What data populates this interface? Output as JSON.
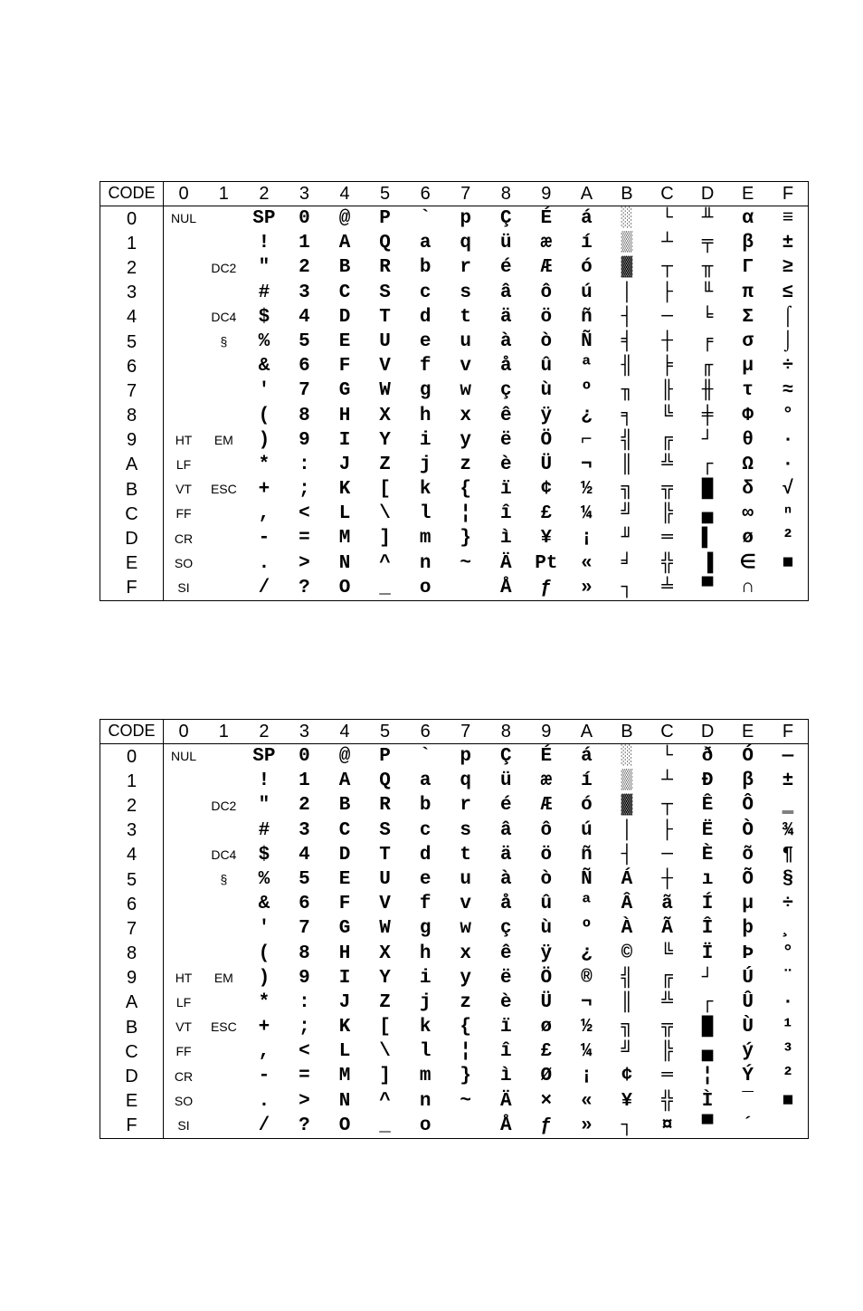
{
  "tables": [
    {
      "header": [
        "CODE",
        "0",
        "1",
        "2",
        "3",
        "4",
        "5",
        "6",
        "7",
        "8",
        "9",
        "A",
        "B",
        "C",
        "D",
        "E",
        "F"
      ],
      "rows": [
        [
          "0",
          "NUL",
          "",
          "SP",
          "0",
          "@",
          "P",
          "`",
          "p",
          "Ç",
          "É",
          "á",
          "░",
          "└",
          "╨",
          "α",
          "≡"
        ],
        [
          "1",
          "",
          "",
          "!",
          "1",
          "A",
          "Q",
          "a",
          "q",
          "ü",
          "æ",
          "í",
          "▒",
          "┴",
          "╤",
          "β",
          "±"
        ],
        [
          "2",
          "",
          "DC2",
          "\"",
          "2",
          "B",
          "R",
          "b",
          "r",
          "é",
          "Æ",
          "ó",
          "▓",
          "┬",
          "╥",
          "Γ",
          "≥"
        ],
        [
          "3",
          "",
          "",
          "#",
          "3",
          "C",
          "S",
          "c",
          "s",
          "â",
          "ô",
          "ú",
          "│",
          "├",
          "╙",
          "π",
          "≤"
        ],
        [
          "4",
          "",
          "DC4",
          "$",
          "4",
          "D",
          "T",
          "d",
          "t",
          "ä",
          "ö",
          "ñ",
          "┤",
          "─",
          "╘",
          "Σ",
          "⌠"
        ],
        [
          "5",
          "",
          "§",
          "%",
          "5",
          "E",
          "U",
          "e",
          "u",
          "à",
          "ò",
          "Ñ",
          "╡",
          "┼",
          "╒",
          "σ",
          "⌡"
        ],
        [
          "6",
          "",
          "",
          "&",
          "6",
          "F",
          "V",
          "f",
          "v",
          "å",
          "û",
          "ª",
          "╢",
          "╞",
          "╓",
          "µ",
          "÷"
        ],
        [
          "7",
          "",
          "",
          "'",
          "7",
          "G",
          "W",
          "g",
          "w",
          "ç",
          "ù",
          "º",
          "╖",
          "╟",
          "╫",
          "τ",
          "≈"
        ],
        [
          "8",
          "",
          "",
          "(",
          "8",
          "H",
          "X",
          "h",
          "x",
          "ê",
          "ÿ",
          "¿",
          "╕",
          "╚",
          "╪",
          "Φ",
          "°"
        ],
        [
          "9",
          "HT",
          "EM",
          ")",
          "9",
          "I",
          "Y",
          "i",
          "y",
          "ë",
          "Ö",
          "⌐",
          "╣",
          "╔",
          "┘",
          "θ",
          "∙"
        ],
        [
          "A",
          "LF",
          "",
          "*",
          ":",
          "J",
          "Z",
          "j",
          "z",
          "è",
          "Ü",
          "¬",
          "║",
          "╩",
          "┌",
          "Ω",
          "·"
        ],
        [
          "B",
          "VT",
          "ESC",
          "+",
          ";",
          "K",
          "[",
          "k",
          "{",
          "ï",
          "¢",
          "½",
          "╗",
          "╦",
          "█",
          "δ",
          "√"
        ],
        [
          "C",
          "FF",
          "",
          ",",
          "<",
          "L",
          "\\",
          "l",
          "¦",
          "î",
          "£",
          "¼",
          "╝",
          "╠",
          "▄",
          "∞",
          "ⁿ"
        ],
        [
          "D",
          "CR",
          "",
          "-",
          "=",
          "M",
          "]",
          "m",
          "}",
          "ì",
          "¥",
          "¡",
          "╜",
          "═",
          "▌",
          "ø",
          "²"
        ],
        [
          "E",
          "SO",
          "",
          ".",
          ">",
          "N",
          "^",
          "n",
          "~",
          "Ä",
          "Pt",
          "«",
          "╛",
          "╬",
          "▐",
          "∈",
          "■"
        ],
        [
          "F",
          "SI",
          "",
          "/",
          "?",
          "O",
          "_",
          "o",
          "",
          "Å",
          "ƒ",
          "»",
          "┐",
          "╧",
          "▀",
          "∩",
          ""
        ]
      ]
    },
    {
      "header": [
        "CODE",
        "0",
        "1",
        "2",
        "3",
        "4",
        "5",
        "6",
        "7",
        "8",
        "9",
        "A",
        "B",
        "C",
        "D",
        "E",
        "F"
      ],
      "rows": [
        [
          "0",
          "NUL",
          "",
          "SP",
          "0",
          "@",
          "P",
          "`",
          "p",
          "Ç",
          "É",
          "á",
          "░",
          "└",
          "ð",
          "Ó",
          "—"
        ],
        [
          "1",
          "",
          "",
          "!",
          "1",
          "A",
          "Q",
          "a",
          "q",
          "ü",
          "æ",
          "í",
          "▒",
          "┴",
          "Ð",
          "β",
          "±"
        ],
        [
          "2",
          "",
          "DC2",
          "\"",
          "2",
          "B",
          "R",
          "b",
          "r",
          "é",
          "Æ",
          "ó",
          "▓",
          "┬",
          "Ê",
          "Ô",
          "‗"
        ],
        [
          "3",
          "",
          "",
          "#",
          "3",
          "C",
          "S",
          "c",
          "s",
          "â",
          "ô",
          "ú",
          "│",
          "├",
          "Ë",
          "Ò",
          "¾"
        ],
        [
          "4",
          "",
          "DC4",
          "$",
          "4",
          "D",
          "T",
          "d",
          "t",
          "ä",
          "ö",
          "ñ",
          "┤",
          "─",
          "È",
          "õ",
          "¶"
        ],
        [
          "5",
          "",
          "§",
          "%",
          "5",
          "E",
          "U",
          "e",
          "u",
          "à",
          "ò",
          "Ñ",
          "Á",
          "┼",
          "ı",
          "Õ",
          "§"
        ],
        [
          "6",
          "",
          "",
          "&",
          "6",
          "F",
          "V",
          "f",
          "v",
          "å",
          "û",
          "ª",
          "Â",
          "ã",
          "Í",
          "µ",
          "÷"
        ],
        [
          "7",
          "",
          "",
          "'",
          "7",
          "G",
          "W",
          "g",
          "w",
          "ç",
          "ù",
          "º",
          "À",
          "Ã",
          "Î",
          "þ",
          "¸"
        ],
        [
          "8",
          "",
          "",
          "(",
          "8",
          "H",
          "X",
          "h",
          "x",
          "ê",
          "ÿ",
          "¿",
          "©",
          "╚",
          "Ï",
          "Þ",
          "°"
        ],
        [
          "9",
          "HT",
          "EM",
          ")",
          "9",
          "I",
          "Y",
          "i",
          "y",
          "ë",
          "Ö",
          "®",
          "╣",
          "╔",
          "┘",
          "Ú",
          "¨"
        ],
        [
          "A",
          "LF",
          "",
          "*",
          ":",
          "J",
          "Z",
          "j",
          "z",
          "è",
          "Ü",
          "¬",
          "║",
          "╩",
          "┌",
          "Û",
          "·"
        ],
        [
          "B",
          "VT",
          "ESC",
          "+",
          ";",
          "K",
          "[",
          "k",
          "{",
          "ï",
          "ø",
          "½",
          "╗",
          "╦",
          "█",
          "Ù",
          "¹"
        ],
        [
          "C",
          "FF",
          "",
          ",",
          "<",
          "L",
          "\\",
          "l",
          "¦",
          "î",
          "£",
          "¼",
          "╝",
          "╠",
          "▄",
          "ý",
          "³"
        ],
        [
          "D",
          "CR",
          "",
          "-",
          "=",
          "M",
          "]",
          "m",
          "}",
          "ì",
          "Ø",
          "¡",
          "¢",
          "═",
          "¦",
          "Ý",
          "²"
        ],
        [
          "E",
          "SO",
          "",
          ".",
          ">",
          "N",
          "^",
          "n",
          "~",
          "Ä",
          "×",
          "«",
          "¥",
          "╬",
          "Ì",
          "¯",
          "■"
        ],
        [
          "F",
          "SI",
          "",
          "/",
          "?",
          "O",
          "_",
          "o",
          "",
          "Å",
          "ƒ",
          "»",
          "┐",
          "¤",
          "▀",
          "´",
          ""
        ]
      ]
    }
  ]
}
